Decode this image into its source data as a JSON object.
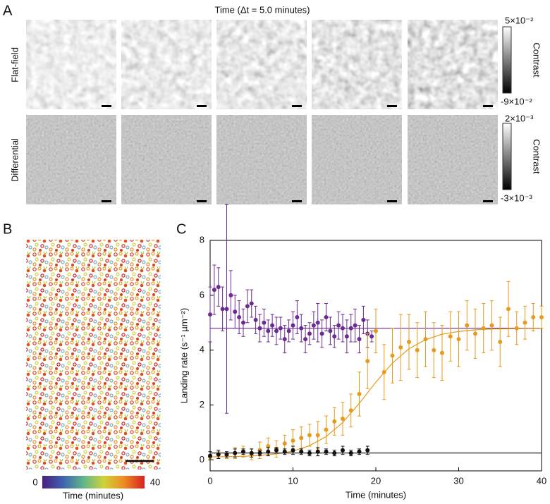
{
  "panels": {
    "a": "A",
    "b": "B",
    "c": "C"
  },
  "panel_a": {
    "title": "Time (Δt = 5.0 minutes)",
    "rows": [
      {
        "label": "Flat-field",
        "colorbar_max": "5×10⁻²",
        "colorbar_min": "-9×10⁻²",
        "colorbar_label": "Contrast"
      },
      {
        "label": "Differential",
        "colorbar_max": "2×10⁻³",
        "colorbar_min": "-3×10⁻³",
        "colorbar_label": "Contrast"
      }
    ]
  },
  "panel_b": {
    "colorbar_range": [
      0,
      40
    ],
    "colorbar_label": "Time (minutes)"
  },
  "chart_data": {
    "type": "errorbar",
    "x_label": "Time (minutes)",
    "y_label": "Landing rate (s⁻¹ µm⁻²)",
    "xlim": [
      0,
      40
    ],
    "ylim": [
      -0.4,
      8
    ],
    "xticks": [
      0,
      10,
      20,
      30,
      40
    ],
    "yticks": [
      0,
      2,
      4,
      6,
      8
    ],
    "series": [
      {
        "color": "#6a2c91",
        "x": [
          0,
          0.5,
          1,
          1.5,
          2,
          2.5,
          3,
          3.5,
          4,
          4.5,
          5,
          5.5,
          6,
          6.5,
          7,
          7.5,
          8,
          8.5,
          9,
          9.5,
          10,
          10.5,
          11,
          11.5,
          12,
          12.5,
          13,
          13.5,
          14,
          14.5,
          15,
          15.5,
          16,
          16.5,
          17,
          17.5,
          18,
          18.5,
          19,
          19.5
        ],
        "values": [
          5.3,
          6.2,
          6.3,
          5.5,
          5.5,
          6.0,
          5.4,
          5.2,
          5.0,
          5.6,
          5.7,
          5.1,
          4.8,
          5.0,
          4.7,
          4.9,
          4.7,
          4.8,
          4.4,
          4.7,
          4.9,
          5.2,
          4.8,
          4.4,
          4.6,
          4.9,
          5.0,
          4.6,
          5.2,
          4.7,
          4.5,
          4.9,
          4.8,
          4.5,
          4.8,
          4.9,
          4.4,
          5.1,
          4.6,
          4.5
        ],
        "errors": [
          1.0,
          0.9,
          0.7,
          0.8,
          3.8,
          0.9,
          0.6,
          0.6,
          0.5,
          0.6,
          0.5,
          0.5,
          0.5,
          0.5,
          0.4,
          0.4,
          0.5,
          0.4,
          0.5,
          0.4,
          0.5,
          0.6,
          0.5,
          0.5,
          0.4,
          0.5,
          0.7,
          0.5,
          0.5,
          0.5,
          0.4,
          0.5,
          0.5,
          0.6,
          0.5,
          0.6,
          0.5,
          0.5,
          0.5,
          0.2
        ]
      },
      {
        "color": "#e69a1e",
        "x": [
          0,
          1,
          2,
          3,
          4,
          5,
          6,
          7,
          8,
          9,
          10,
          11,
          12,
          13,
          14,
          15,
          16,
          17,
          18,
          19,
          20,
          21,
          22,
          23,
          24,
          25,
          26,
          27,
          28,
          29,
          30,
          31,
          32,
          33,
          34,
          35,
          36,
          37,
          38,
          39,
          40
        ],
        "values": [
          0.1,
          0.2,
          0.15,
          0.25,
          0.3,
          0.2,
          0.35,
          0.5,
          0.4,
          0.6,
          0.7,
          0.8,
          0.9,
          0.9,
          1.1,
          1.4,
          1.5,
          1.8,
          2.4,
          3.6,
          4.7,
          3.2,
          3.8,
          4.1,
          4.3,
          4.0,
          4.4,
          4.0,
          3.9,
          4.5,
          4.4,
          4.9,
          4.6,
          4.8,
          4.9,
          4.3,
          5.5,
          4.8,
          5.0,
          5.2,
          5.2
        ],
        "errors": [
          0.1,
          0.1,
          0.1,
          0.2,
          0.2,
          0.2,
          0.3,
          0.3,
          0.3,
          0.3,
          0.4,
          0.4,
          0.4,
          0.5,
          0.5,
          0.5,
          0.6,
          0.6,
          0.8,
          1.0,
          0.8,
          1.0,
          1.0,
          1.2,
          1.0,
          1.0,
          1.0,
          1.0,
          1.0,
          0.9,
          1.0,
          0.9,
          0.9,
          0.9,
          0.9,
          0.9,
          1.0,
          0.6,
          0.6,
          0.5,
          0.4
        ]
      },
      {
        "color": "#111111",
        "x": [
          0,
          1,
          2,
          3,
          4,
          5,
          6,
          7,
          8,
          9,
          10,
          11,
          12,
          13,
          14,
          15,
          16,
          17,
          18,
          19
        ],
        "values": [
          0.15,
          0.2,
          0.2,
          0.25,
          0.3,
          0.25,
          0.25,
          0.3,
          0.35,
          0.3,
          0.35,
          0.3,
          0.25,
          0.3,
          0.3,
          0.25,
          0.35,
          0.25,
          0.3,
          0.35
        ],
        "errors": [
          0.15,
          0.15,
          0.1,
          0.15,
          0.1,
          0.15,
          0.1,
          0.15,
          0.1,
          0.1,
          0.15,
          0.1,
          0.1,
          0.15,
          0.1,
          0.1,
          0.15,
          0.1,
          0.1,
          0.15
        ]
      }
    ],
    "fits": [
      {
        "color": "#6a2c91",
        "x": [
          0,
          40
        ],
        "values": [
          4.8,
          4.8
        ]
      },
      {
        "color": "#e69a1e",
        "x": [
          0,
          2,
          4,
          6,
          8,
          10,
          12,
          14,
          16,
          18,
          20,
          22,
          24,
          26,
          28,
          30,
          32,
          34,
          36,
          38,
          40
        ],
        "values": [
          0.11,
          0.12,
          0.13,
          0.16,
          0.22,
          0.32,
          0.52,
          0.85,
          1.36,
          2.06,
          2.83,
          3.53,
          4.05,
          4.38,
          4.58,
          4.68,
          4.74,
          4.77,
          4.78,
          4.79,
          4.79
        ]
      },
      {
        "color": "#111111",
        "x": [
          0,
          40
        ],
        "values": [
          0.25,
          0.25
        ]
      }
    ]
  }
}
